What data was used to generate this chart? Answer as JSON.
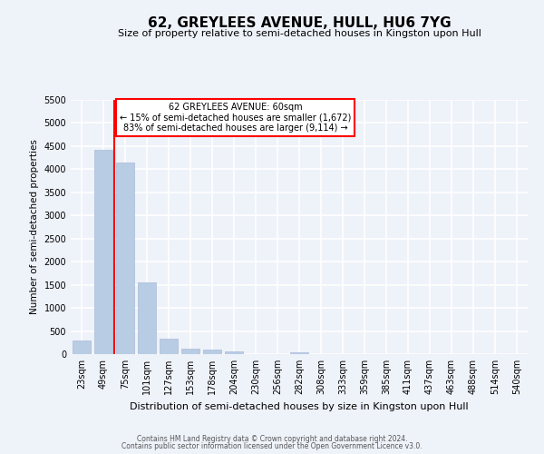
{
  "title": "62, GREYLEES AVENUE, HULL, HU6 7YG",
  "subtitle": "Size of property relative to semi-detached houses in Kingston upon Hull",
  "xlabel": "Distribution of semi-detached houses by size in Kingston upon Hull",
  "ylabel": "Number of semi-detached properties",
  "footer_line1": "Contains HM Land Registry data © Crown copyright and database right 2024.",
  "footer_line2": "Contains public sector information licensed under the Open Government Licence v3.0.",
  "annotation_title": "62 GREYLEES AVENUE: 60sqm",
  "annotation_line2": "← 15% of semi-detached houses are smaller (1,672)",
  "annotation_line3": "83% of semi-detached houses are larger (9,114) →",
  "bar_labels": [
    "23sqm",
    "49sqm",
    "75sqm",
    "101sqm",
    "127sqm",
    "153sqm",
    "178sqm",
    "204sqm",
    "230sqm",
    "256sqm",
    "282sqm",
    "308sqm",
    "333sqm",
    "359sqm",
    "385sqm",
    "411sqm",
    "437sqm",
    "463sqm",
    "488sqm",
    "514sqm",
    "540sqm"
  ],
  "bar_values": [
    300,
    4420,
    4140,
    1560,
    330,
    120,
    90,
    50,
    0,
    0,
    45,
    0,
    0,
    0,
    0,
    0,
    0,
    0,
    0,
    0,
    0
  ],
  "bar_color": "#b8cce4",
  "bar_edge_color": "#aabbd8",
  "vline_x": 1.5,
  "vline_color": "red",
  "background_color": "#eef2f9",
  "grid_color": "white",
  "ylim": [
    0,
    5500
  ],
  "yticks": [
    0,
    500,
    1000,
    1500,
    2000,
    2500,
    3000,
    3500,
    4000,
    4500,
    5000,
    5500
  ],
  "annotation_box_color": "white",
  "annotation_box_edge": "red",
  "title_fontsize": 11,
  "subtitle_fontsize": 8,
  "xlabel_fontsize": 8,
  "ylabel_fontsize": 7.5,
  "tick_fontsize": 7,
  "footer_fontsize": 5.5
}
